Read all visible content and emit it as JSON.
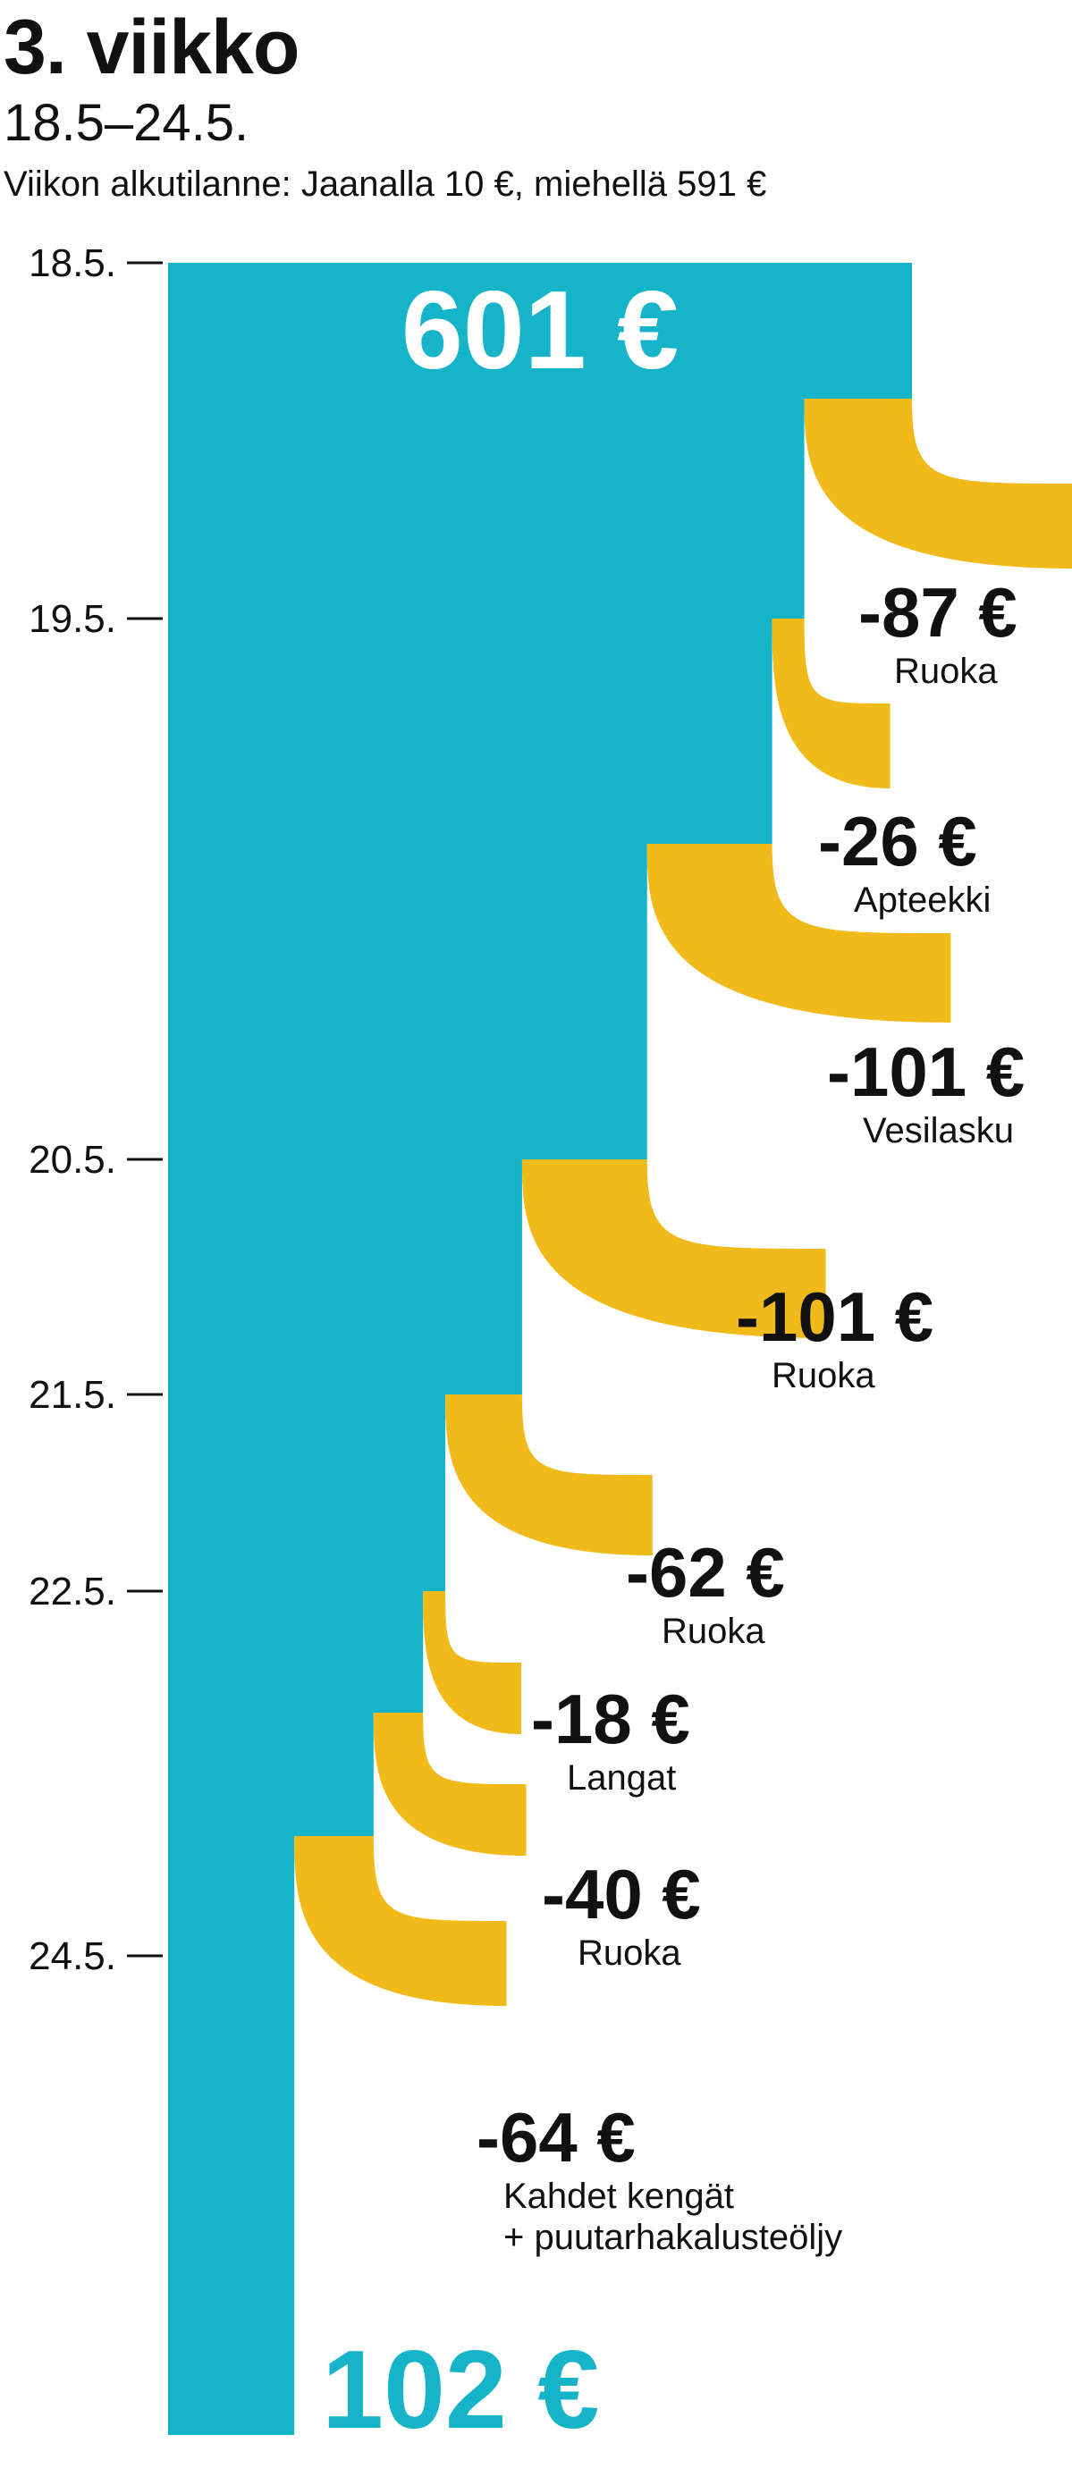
{
  "header": {
    "title": "3. viikko",
    "subtitle": "18.5–24.5.",
    "intro": "Viikon alkutilanne: Jaanalla 10 €, miehellä 591 €"
  },
  "colors": {
    "balance": "#16b4c8",
    "expense": "#f0bb1a",
    "text": "#111111"
  },
  "chart_data": {
    "type": "waterfall",
    "title": "3. viikko",
    "unit": "€",
    "start": {
      "value": 601,
      "label": "601 €"
    },
    "end": {
      "value": 102,
      "label": "102 €"
    },
    "date_ticks": [
      "18.5.",
      "19.5.",
      "20.5.",
      "21.5.",
      "22.5.",
      "24.5."
    ],
    "expenses": [
      {
        "value": -87,
        "amount_label": "-87 €",
        "label": "Ruoka",
        "date": "18.5."
      },
      {
        "value": -26,
        "amount_label": "-26 €",
        "label": "Apteekki",
        "date": "19.5."
      },
      {
        "value": -101,
        "amount_label": "-101 €",
        "label": "Vesilasku",
        "date": "19.5."
      },
      {
        "value": -101,
        "amount_label": "-101 €",
        "label": "Ruoka",
        "date": "20.5."
      },
      {
        "value": -62,
        "amount_label": "-62 €",
        "label": "Ruoka",
        "date": "21.5."
      },
      {
        "value": -18,
        "amount_label": "-18 €",
        "label": "Langat",
        "date": "22.5."
      },
      {
        "value": -40,
        "amount_label": "-40 €",
        "label": "Ruoka",
        "date": "22.5."
      },
      {
        "value": -64,
        "amount_label": "-64 €",
        "label": "Kahdet kengät\n+ puutarhakalusteöljy",
        "date": "24.5."
      }
    ]
  }
}
